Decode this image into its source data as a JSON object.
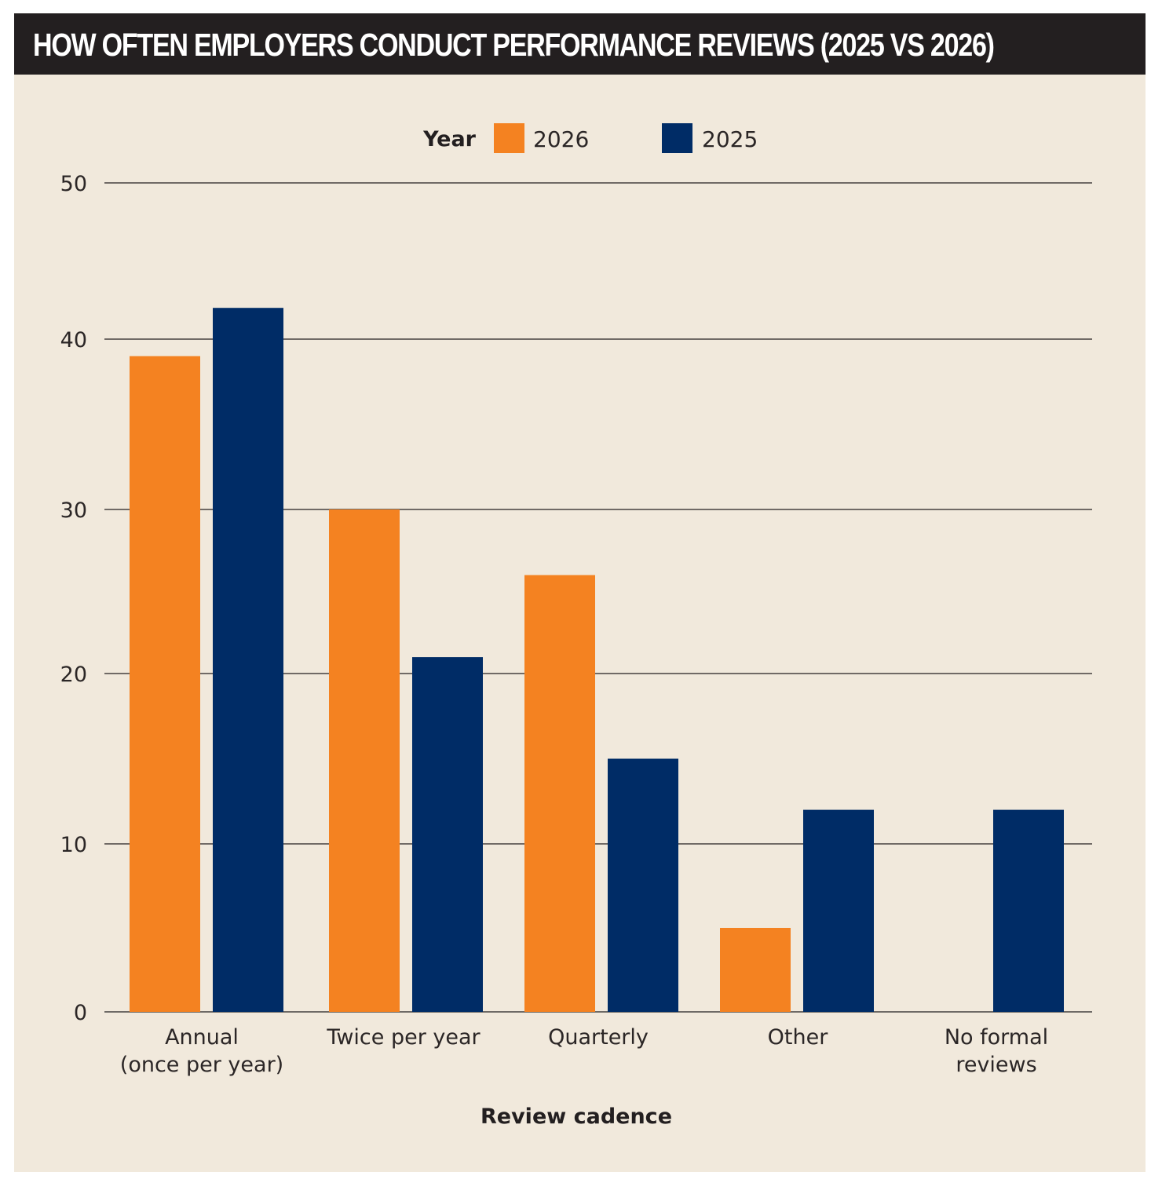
{
  "chart_data": {
    "type": "bar",
    "title": "HOW OFTEN EMPLOYERS CONDUCT PERFORMANCE REVIEWS (2025 VS 2026)",
    "xlabel": "Review cadence",
    "ylabel": "",
    "ylim": [
      0,
      50
    ],
    "yticks": [
      0,
      10,
      20,
      30,
      40,
      50
    ],
    "ytick_labels": [
      "0",
      "10",
      "20",
      "30",
      "40",
      "50"
    ],
    "grid": true,
    "legend": {
      "title": "Year",
      "placement": "top-center",
      "entries": [
        {
          "label": "2026",
          "color": "#f48221"
        },
        {
          "label": "2025",
          "color": "#002c66"
        }
      ]
    },
    "categories": [
      [
        "Annual",
        "(once per year)"
      ],
      [
        "Twice per year"
      ],
      [
        "Quarterly"
      ],
      [
        "Other"
      ],
      [
        "No formal",
        "reviews"
      ]
    ],
    "series": [
      {
        "name": "2026",
        "color": "#f48221",
        "values": [
          39,
          30,
          26,
          5,
          0
        ]
      },
      {
        "name": "2025",
        "color": "#002c66",
        "values": [
          42,
          21,
          15,
          12,
          12
        ]
      }
    ]
  },
  "colors": {
    "background": "#f1e9dc",
    "title_bar": "#231f20",
    "title_text": "#ffffff",
    "gridline": "#231f20"
  }
}
